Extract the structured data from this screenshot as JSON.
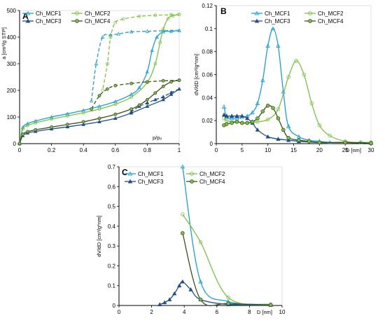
{
  "chart_data": [
    {
      "panel": "A",
      "type": "line",
      "xlabel": "p/p₀",
      "ylabel": "a [cm³/g STP]",
      "xlim": [
        0,
        1
      ],
      "ylim": [
        0,
        500
      ],
      "xticks": [
        0,
        0.2,
        0.4,
        0.6,
        0.8,
        1
      ],
      "xtick_labels": [
        "0",
        "0.2",
        "0.4",
        "0.6",
        "0.8",
        "1"
      ],
      "yticks": [
        0,
        100,
        200,
        300,
        400,
        500
      ],
      "legend": [
        "Ch_MCF1",
        "Ch_MCF2",
        "Ch_MCF3",
        "Ch_MCF4"
      ],
      "series": [
        {
          "name": "Ch_MCF1",
          "color": "#1aa0d8",
          "marker": "triangle",
          "fill": "none",
          "branches": [
            {
              "dash": false,
              "x": [
                0.0,
                0.02,
                0.05,
                0.1,
                0.2,
                0.3,
                0.4,
                0.5,
                0.6,
                0.7,
                0.75,
                0.8,
                0.83,
                0.86,
                0.9,
                0.95,
                1.0
              ],
              "y": [
                0,
                60,
                75,
                85,
                100,
                112,
                125,
                140,
                158,
                185,
                210,
                270,
                350,
                400,
                420,
                422,
                425
              ]
            },
            {
              "dash": true,
              "x": [
                1.0,
                0.9,
                0.8,
                0.7,
                0.62,
                0.57,
                0.52,
                0.48,
                0.45
              ],
              "y": [
                425,
                424,
                422,
                420,
                412,
                408,
                400,
                300,
                160
              ]
            }
          ]
        },
        {
          "name": "Ch_MCF2",
          "color": "#7cc242",
          "marker": "circle",
          "fill": "none",
          "branches": [
            {
              "dash": false,
              "x": [
                0.0,
                0.02,
                0.05,
                0.1,
                0.2,
                0.3,
                0.4,
                0.5,
                0.6,
                0.7,
                0.8,
                0.85,
                0.88,
                0.9,
                0.93,
                0.96,
                1.0
              ],
              "y": [
                0,
                55,
                68,
                78,
                92,
                104,
                116,
                130,
                148,
                175,
                230,
                300,
                380,
                430,
                470,
                480,
                485
              ]
            },
            {
              "dash": true,
              "x": [
                1.0,
                0.95,
                0.85,
                0.75,
                0.65,
                0.6,
                0.57,
                0.55,
                0.52
              ],
              "y": [
                485,
                484,
                482,
                478,
                468,
                455,
                400,
                300,
                200
              ]
            }
          ]
        },
        {
          "name": "Ch_MCF3",
          "color": "#1f4e8c",
          "marker": "triangle",
          "fill": "#1f4e8c",
          "branches": [
            {
              "dash": false,
              "x": [
                0.0,
                0.02,
                0.05,
                0.1,
                0.2,
                0.3,
                0.4,
                0.5,
                0.6,
                0.7,
                0.8,
                0.9,
                0.95,
                1.0
              ],
              "y": [
                0,
                30,
                40,
                46,
                55,
                63,
                72,
                82,
                95,
                115,
                140,
                165,
                185,
                205
              ]
            },
            {
              "dash": true,
              "x": [
                1.0,
                0.95,
                0.9,
                0.85,
                0.8,
                0.75,
                0.7
              ],
              "y": [
                205,
                192,
                176,
                165,
                153,
                140,
                120
              ]
            }
          ]
        },
        {
          "name": "Ch_MCF4",
          "color": "#3e4f1f",
          "marker": "circle",
          "fill": "#7cc242",
          "branches": [
            {
              "dash": false,
              "x": [
                0.0,
                0.02,
                0.05,
                0.1,
                0.2,
                0.3,
                0.4,
                0.5,
                0.6,
                0.7,
                0.75,
                0.8,
                0.85,
                0.9,
                0.95,
                1.0
              ],
              "y": [
                0,
                35,
                45,
                52,
                62,
                72,
                82,
                95,
                110,
                130,
                145,
                165,
                190,
                215,
                232,
                238
              ]
            },
            {
              "dash": true,
              "x": [
                1.0,
                0.9,
                0.8,
                0.7,
                0.6,
                0.55,
                0.5,
                0.45
              ],
              "y": [
                238,
                236,
                232,
                226,
                218,
                205,
                180,
                130
              ]
            }
          ]
        }
      ]
    },
    {
      "panel": "B",
      "type": "line",
      "xlabel": "D [nm]",
      "ylabel": "dV/dD [cm³/g*nm]",
      "xlim": [
        0,
        30
      ],
      "ylim": [
        0,
        0.12
      ],
      "xticks": [
        0,
        5,
        10,
        15,
        20,
        25,
        30
      ],
      "yticks": [
        0,
        0.02,
        0.04,
        0.06,
        0.08,
        0.1,
        0.12
      ],
      "ytick_labels": [
        "0",
        "0.02",
        "0.04",
        "0.06",
        "0.08",
        "0.1",
        "0.12"
      ],
      "legend": [
        "Ch_MCF1",
        "Ch_MCF2",
        "Ch_MCF3",
        "Ch_MCF4"
      ],
      "series": [
        {
          "name": "Ch_MCF1",
          "color": "#1aa0d8",
          "marker": "triangle",
          "fill": "none",
          "x": [
            1.5,
            2,
            3,
            4,
            5,
            6,
            7,
            8,
            9,
            10,
            11,
            12,
            13,
            14,
            16,
            18,
            20,
            22,
            25,
            28,
            30
          ],
          "y": [
            0.032,
            0.023,
            0.022,
            0.022,
            0.023,
            0.024,
            0.027,
            0.035,
            0.055,
            0.085,
            0.1,
            0.085,
            0.045,
            0.015,
            0.006,
            0.003,
            0.002,
            0.001,
            0.001,
            0.001,
            0.001
          ]
        },
        {
          "name": "Ch_MCF2",
          "color": "#7cc242",
          "marker": "circle",
          "fill": "none",
          "x": [
            1.5,
            2,
            3,
            4,
            5,
            6,
            8,
            10,
            12,
            14,
            15.5,
            17,
            18.5,
            20,
            22,
            25,
            28,
            30
          ],
          "y": [
            0.022,
            0.02,
            0.019,
            0.019,
            0.018,
            0.018,
            0.019,
            0.021,
            0.03,
            0.058,
            0.072,
            0.06,
            0.035,
            0.016,
            0.007,
            0.002,
            0.001,
            0.001
          ]
        },
        {
          "name": "Ch_MCF3",
          "color": "#1f4e8c",
          "marker": "triangle",
          "fill": "#1f4e8c",
          "x": [
            1.5,
            2,
            3,
            4,
            5,
            6,
            7,
            8,
            10,
            12,
            14,
            16,
            20,
            25,
            30
          ],
          "y": [
            0.025,
            0.024,
            0.024,
            0.024,
            0.024,
            0.022,
            0.018,
            0.012,
            0.006,
            0.004,
            0.003,
            0.002,
            0.001,
            0.001,
            0.0005
          ]
        },
        {
          "name": "Ch_MCF4",
          "color": "#3e4f1f",
          "marker": "circle",
          "fill": "#7cc242",
          "x": [
            1.5,
            2,
            3,
            4,
            5,
            6,
            7,
            8,
            9,
            10,
            11,
            12,
            13,
            14,
            16,
            18,
            20,
            25,
            30
          ],
          "y": [
            0.016,
            0.017,
            0.018,
            0.019,
            0.018,
            0.018,
            0.019,
            0.022,
            0.028,
            0.033,
            0.031,
            0.022,
            0.012,
            0.005,
            0.003,
            0.002,
            0.001,
            0.001,
            0.0005
          ]
        }
      ]
    },
    {
      "panel": "C",
      "type": "line",
      "xlabel": "D [nm]",
      "ylabel": "dV/dD [cm³/g*nm]",
      "xlim": [
        0,
        10
      ],
      "ylim": [
        0,
        0.7
      ],
      "xticks": [
        0,
        2,
        4,
        6,
        8,
        10
      ],
      "yticks": [
        0,
        0.1,
        0.2,
        0.3,
        0.4,
        0.5,
        0.6,
        0.7
      ],
      "ytick_labels": [
        "0",
        "0.1",
        "0.2",
        "0.3",
        "0.4",
        "0.5",
        "0.6",
        "0.7"
      ],
      "legend": [
        "Ch_MCF1",
        "Ch_MCF2",
        "Ch_MCF3",
        "Ch_MCF4"
      ],
      "series": [
        {
          "name": "Ch_MCF1",
          "color": "#1aa0d8",
          "marker": "triangle",
          "fill": "none",
          "x": [
            3.9,
            5.0,
            6.7,
            9.3
          ],
          "y": [
            0.7,
            0.12,
            0.02,
            0.005
          ]
        },
        {
          "name": "Ch_MCF2",
          "color": "#7cc242",
          "marker": "circle",
          "fill": "none",
          "x": [
            3.9,
            5.0,
            6.7,
            9.3
          ],
          "y": [
            0.46,
            0.32,
            0.04,
            0.005
          ]
        },
        {
          "name": "Ch_MCF3",
          "color": "#1f4e8c",
          "marker": "triangle",
          "fill": "#1f4e8c",
          "x": [
            2.5,
            2.8,
            3.1,
            3.4,
            3.7,
            3.9,
            4.4,
            5.0,
            6.7,
            9.3
          ],
          "y": [
            0.005,
            0.015,
            0.03,
            0.06,
            0.1,
            0.12,
            0.08,
            0.03,
            0.005,
            0.002
          ]
        },
        {
          "name": "Ch_MCF4",
          "color": "#3e4f1f",
          "marker": "circle",
          "fill": "#7cc242",
          "x": [
            3.9,
            5.0,
            6.7,
            9.3
          ],
          "y": [
            0.365,
            0.03,
            0.01,
            0.003
          ]
        }
      ]
    }
  ]
}
